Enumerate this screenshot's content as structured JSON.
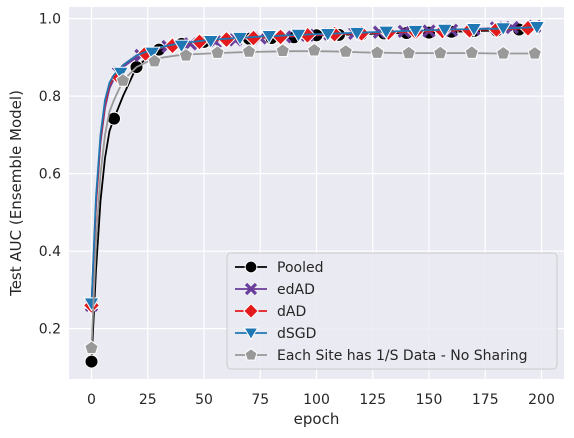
{
  "chart_data": {
    "type": "line",
    "title": "",
    "xlabel": "epoch",
    "ylabel": "Test AUC (Ensemble Model)",
    "xlim": [
      -10,
      210
    ],
    "ylim": [
      0.07,
      1.03
    ],
    "xticks": [
      0,
      25,
      50,
      75,
      100,
      125,
      150,
      175,
      200
    ],
    "yticks": [
      0.2,
      0.4,
      0.6,
      0.8,
      1.0
    ],
    "ytick_labels": [
      "0.2",
      "0.4",
      "0.6",
      "0.8",
      "1.0"
    ],
    "grid": true,
    "legend_position": "lower-right",
    "series": [
      {
        "name": "Pooled",
        "color": "#000000",
        "marker": "circle",
        "x": [
          0,
          2,
          4,
          6,
          8,
          10,
          14,
          20,
          26,
          32,
          38,
          45,
          52,
          60,
          68,
          76,
          84,
          92,
          100,
          110,
          120,
          130,
          140,
          150,
          160,
          170,
          180,
          190,
          196
        ],
        "y": [
          0.115,
          0.35,
          0.53,
          0.64,
          0.71,
          0.742,
          0.8,
          0.875,
          0.905,
          0.925,
          0.935,
          0.94,
          0.945,
          0.948,
          0.95,
          0.952,
          0.953,
          0.955,
          0.957,
          0.958,
          0.96,
          0.962,
          0.963,
          0.964,
          0.966,
          0.968,
          0.969,
          0.972,
          0.975
        ],
        "marker_x": [
          0,
          10,
          20,
          30,
          40,
          50,
          60,
          70,
          80,
          90,
          100,
          110,
          120,
          130,
          140,
          150,
          160,
          170,
          180,
          190
        ],
        "marker_y": [
          0.115,
          0.742,
          0.875,
          0.92,
          0.935,
          0.94,
          0.945,
          0.948,
          0.95,
          0.952,
          0.957,
          0.958,
          0.96,
          0.962,
          0.963,
          0.964,
          0.966,
          0.968,
          0.969,
          0.972
        ]
      },
      {
        "name": "edAD",
        "color": "#6a3d9a",
        "marker": "x",
        "x": [
          0,
          2,
          4,
          6,
          8,
          10,
          14,
          20,
          26,
          32,
          38,
          45,
          52,
          60,
          68,
          76,
          84,
          92,
          100,
          110,
          120,
          130,
          140,
          150,
          160,
          170,
          180,
          190,
          197
        ],
        "y": [
          0.26,
          0.52,
          0.68,
          0.77,
          0.82,
          0.845,
          0.875,
          0.9,
          0.915,
          0.925,
          0.932,
          0.938,
          0.942,
          0.945,
          0.948,
          0.95,
          0.952,
          0.955,
          0.957,
          0.96,
          0.962,
          0.964,
          0.966,
          0.968,
          0.97,
          0.973,
          0.976,
          0.978,
          0.98
        ],
        "marker_x": [
          0,
          12,
          22,
          34,
          44,
          55,
          64,
          75,
          86,
          96,
          106,
          117,
          128,
          139,
          150,
          160,
          170,
          180,
          187,
          197
        ],
        "marker_y": [
          0.26,
          0.86,
          0.905,
          0.928,
          0.935,
          0.94,
          0.945,
          0.95,
          0.953,
          0.957,
          0.96,
          0.962,
          0.965,
          0.967,
          0.968,
          0.97,
          0.973,
          0.976,
          0.977,
          0.98
        ]
      },
      {
        "name": "dAD",
        "color": "#e31a1c",
        "marker": "diamond",
        "x": [
          0,
          2,
          4,
          6,
          8,
          10,
          14,
          20,
          26,
          32,
          38,
          45,
          52,
          60,
          68,
          76,
          84,
          92,
          100,
          110,
          120,
          130,
          140,
          150,
          160,
          170,
          180,
          190,
          194
        ],
        "y": [
          0.26,
          0.52,
          0.69,
          0.78,
          0.83,
          0.85,
          0.88,
          0.905,
          0.918,
          0.927,
          0.934,
          0.939,
          0.943,
          0.946,
          0.949,
          0.951,
          0.953,
          0.956,
          0.958,
          0.96,
          0.962,
          0.964,
          0.966,
          0.967,
          0.969,
          0.971,
          0.972,
          0.974,
          0.975
        ],
        "marker_x": [
          0,
          12,
          24,
          36,
          48,
          60,
          72,
          84,
          96,
          108,
          120,
          132,
          144,
          156,
          168,
          180,
          194
        ],
        "marker_y": [
          0.26,
          0.85,
          0.91,
          0.93,
          0.94,
          0.946,
          0.95,
          0.953,
          0.957,
          0.96,
          0.962,
          0.964,
          0.966,
          0.968,
          0.97,
          0.972,
          0.975
        ]
      },
      {
        "name": "dSGD",
        "color": "#1f77b4",
        "marker": "triangle-down",
        "x": [
          0,
          2,
          4,
          6,
          8,
          10,
          14,
          20,
          26,
          32,
          38,
          45,
          52,
          60,
          68,
          76,
          84,
          92,
          100,
          110,
          120,
          130,
          140,
          150,
          160,
          170,
          180,
          190,
          198
        ],
        "y": [
          0.265,
          0.54,
          0.7,
          0.79,
          0.835,
          0.855,
          0.88,
          0.905,
          0.918,
          0.928,
          0.935,
          0.94,
          0.945,
          0.948,
          0.951,
          0.954,
          0.956,
          0.958,
          0.96,
          0.962,
          0.964,
          0.966,
          0.968,
          0.97,
          0.972,
          0.973,
          0.974,
          0.976,
          0.978
        ],
        "marker_x": [
          0,
          13,
          27,
          40,
          53,
          66,
          79,
          92,
          105,
          118,
          131,
          144,
          157,
          170,
          183,
          198
        ],
        "marker_y": [
          0.265,
          0.86,
          0.912,
          0.93,
          0.942,
          0.95,
          0.955,
          0.958,
          0.96,
          0.963,
          0.966,
          0.968,
          0.971,
          0.973,
          0.975,
          0.978
        ]
      },
      {
        "name": "Each Site has 1/S Data - No Sharing",
        "color": "#999999",
        "marker": "pentagon",
        "x": [
          0,
          2,
          4,
          6,
          8,
          10,
          14,
          20,
          26,
          32,
          38,
          45,
          52,
          60,
          70,
          80,
          90,
          100,
          110,
          120,
          130,
          140,
          150,
          160,
          170,
          180,
          190,
          197
        ],
        "y": [
          0.15,
          0.42,
          0.6,
          0.7,
          0.76,
          0.79,
          0.84,
          0.875,
          0.892,
          0.9,
          0.905,
          0.908,
          0.91,
          0.912,
          0.914,
          0.915,
          0.916,
          0.916,
          0.915,
          0.913,
          0.912,
          0.911,
          0.911,
          0.911,
          0.911,
          0.91,
          0.91,
          0.91
        ],
        "marker_x": [
          0,
          14,
          28,
          42,
          56,
          70,
          85,
          99,
          113,
          127,
          141,
          155,
          169,
          183,
          197
        ],
        "marker_y": [
          0.15,
          0.84,
          0.89,
          0.905,
          0.912,
          0.915,
          0.917,
          0.918,
          0.915,
          0.912,
          0.911,
          0.911,
          0.912,
          0.91,
          0.91
        ]
      }
    ]
  }
}
